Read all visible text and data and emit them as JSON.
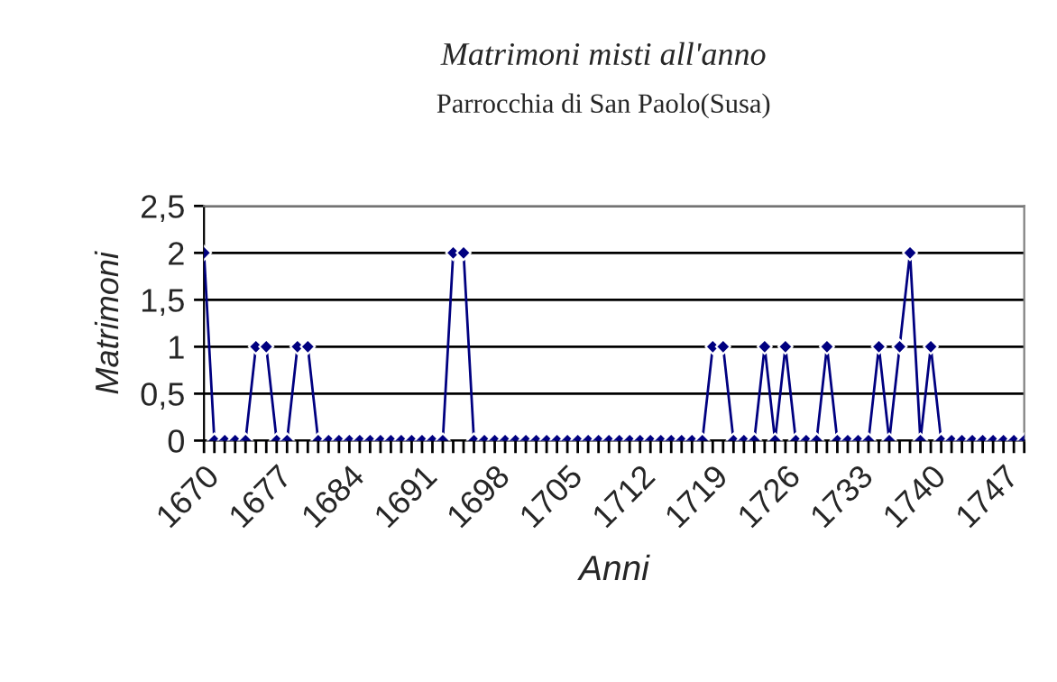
{
  "chart_data": {
    "type": "line",
    "title": "Matrimoni misti all'anno",
    "subtitle": "Parrocchia di San Paolo(Susa)",
    "xlabel": "Anni",
    "ylabel": "Matrimoni",
    "x": [
      1670,
      1671,
      1672,
      1673,
      1674,
      1675,
      1676,
      1677,
      1678,
      1679,
      1680,
      1681,
      1682,
      1683,
      1684,
      1685,
      1686,
      1687,
      1688,
      1689,
      1690,
      1691,
      1692,
      1693,
      1694,
      1695,
      1696,
      1697,
      1698,
      1699,
      1700,
      1701,
      1702,
      1703,
      1704,
      1705,
      1706,
      1707,
      1708,
      1709,
      1710,
      1711,
      1712,
      1713,
      1714,
      1715,
      1716,
      1717,
      1718,
      1719,
      1720,
      1721,
      1722,
      1723,
      1724,
      1725,
      1726,
      1727,
      1728,
      1729,
      1730,
      1731,
      1732,
      1733,
      1734,
      1735,
      1736,
      1737,
      1738,
      1739,
      1740,
      1741,
      1742,
      1743,
      1744,
      1745,
      1746,
      1747,
      1748,
      1749
    ],
    "series": [
      {
        "color": "#000080",
        "values": [
          2,
          0,
          0,
          0,
          0,
          1,
          1,
          0,
          0,
          1,
          1,
          0,
          0,
          0,
          0,
          0,
          0,
          0,
          0,
          0,
          0,
          0,
          0,
          0,
          2,
          2,
          0,
          0,
          0,
          0,
          0,
          0,
          0,
          0,
          0,
          0,
          0,
          0,
          0,
          0,
          0,
          0,
          0,
          0,
          0,
          0,
          0,
          0,
          0,
          1,
          1,
          0,
          0,
          0,
          1,
          0,
          1,
          0,
          0,
          0,
          1,
          0,
          0,
          0,
          0,
          1,
          0,
          1,
          2,
          0,
          1,
          0,
          0,
          0,
          0,
          0,
          0,
          0,
          0,
          0
        ]
      }
    ],
    "xlim": [
      1670,
      1749
    ],
    "xticks": [
      1670,
      {
        "value": 1671,
        "label": null
      },
      {
        "value": 1672,
        "label": null
      },
      {
        "value": 1673,
        "label": null
      },
      {
        "value": 1674,
        "label": null
      },
      {
        "value": 1675,
        "label": null
      },
      {
        "value": 1676,
        "label": null
      },
      1677,
      {
        "value": 1678,
        "label": null
      },
      {
        "value": 1679,
        "label": null
      },
      {
        "value": 1680,
        "label": null
      },
      {
        "value": 1681,
        "label": null
      },
      {
        "value": 1682,
        "label": null
      },
      {
        "value": 1683,
        "label": null
      },
      1684,
      {
        "value": 1685,
        "label": null
      },
      {
        "value": 1686,
        "label": null
      },
      {
        "value": 1687,
        "label": null
      },
      {
        "value": 1688,
        "label": null
      },
      {
        "value": 1689,
        "label": null
      },
      {
        "value": 1690,
        "label": null
      },
      1691,
      {
        "value": 1692,
        "label": null
      },
      {
        "value": 1693,
        "label": null
      },
      {
        "value": 1694,
        "label": null
      },
      {
        "value": 1695,
        "label": null
      },
      {
        "value": 1696,
        "label": null
      },
      {
        "value": 1697,
        "label": null
      },
      1698,
      {
        "value": 1699,
        "label": null
      },
      {
        "value": 1700,
        "label": null
      },
      {
        "value": 1701,
        "label": null
      },
      {
        "value": 1702,
        "label": null
      },
      {
        "value": 1703,
        "label": null
      },
      {
        "value": 1704,
        "label": null
      },
      1705,
      {
        "value": 1706,
        "label": null
      },
      {
        "value": 1707,
        "label": null
      },
      {
        "value": 1708,
        "label": null
      },
      {
        "value": 1709,
        "label": null
      },
      {
        "value": 1710,
        "label": null
      },
      {
        "value": 1711,
        "label": null
      },
      1712,
      {
        "value": 1713,
        "label": null
      },
      {
        "value": 1714,
        "label": null
      },
      {
        "value": 1715,
        "label": null
      },
      {
        "value": 1716,
        "label": null
      },
      {
        "value": 1717,
        "label": null
      },
      {
        "value": 1718,
        "label": null
      },
      1719,
      {
        "value": 1720,
        "label": null
      },
      {
        "value": 1721,
        "label": null
      },
      {
        "value": 1722,
        "label": null
      },
      {
        "value": 1723,
        "label": null
      },
      {
        "value": 1724,
        "label": null
      },
      {
        "value": 1725,
        "label": null
      },
      1726,
      {
        "value": 1727,
        "label": null
      },
      {
        "value": 1728,
        "label": null
      },
      {
        "value": 1729,
        "label": null
      },
      {
        "value": 1730,
        "label": null
      },
      {
        "value": 1731,
        "label": null
      },
      {
        "value": 1732,
        "label": null
      },
      1733,
      {
        "value": 1734,
        "label": null
      },
      {
        "value": 1735,
        "label": null
      },
      {
        "value": 1736,
        "label": null
      },
      {
        "value": 1737,
        "label": null
      },
      {
        "value": 1738,
        "label": null
      },
      {
        "value": 1739,
        "label": null
      },
      1740,
      {
        "value": 1741,
        "label": null
      },
      {
        "value": 1742,
        "label": null
      },
      {
        "value": 1743,
        "label": null
      },
      {
        "value": 1744,
        "label": null
      },
      {
        "value": 1745,
        "label": null
      },
      {
        "value": 1746,
        "label": null
      },
      1747,
      {
        "value": 1748,
        "label": null
      },
      {
        "value": 1749,
        "label": null
      }
    ],
    "ylim": [
      0,
      2.5
    ],
    "yticks": [
      0,
      {
        "value": 0.5,
        "label": "0,5"
      },
      1,
      {
        "value": 1.5,
        "label": "1,5"
      },
      2,
      {
        "value": 2.5,
        "label": "2,5"
      }
    ],
    "grid": "y",
    "marker": "diamond",
    "line_style": "solid",
    "legend": false
  }
}
